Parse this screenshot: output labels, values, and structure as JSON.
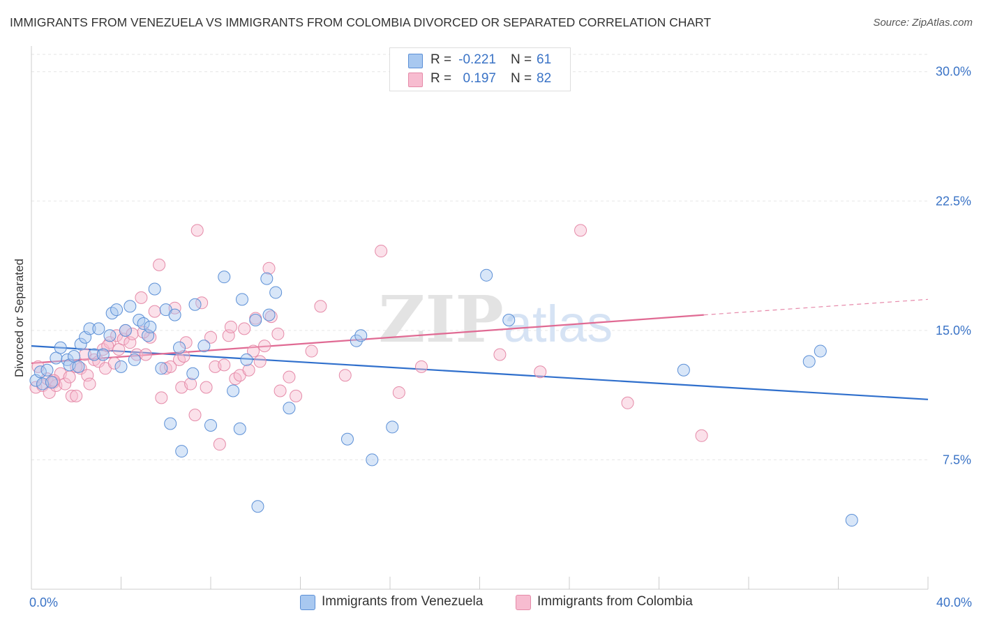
{
  "header": {
    "title": "IMMIGRANTS FROM VENEZUELA VS IMMIGRANTS FROM COLOMBIA DIVORCED OR SEPARATED CORRELATION CHART",
    "source": "Source: ZipAtlas.com"
  },
  "watermark": {
    "text_zip": "ZIP",
    "text_atlas": "atlas"
  },
  "colors": {
    "venezuela_fill": "#a8c8f0",
    "venezuela_stroke": "#5b8fd6",
    "venezuela_line": "#2f6fcc",
    "colombia_fill": "#f7bcd0",
    "colombia_stroke": "#e58aa8",
    "colombia_line": "#e06a93",
    "tick_label": "#3a73c6",
    "grid": "#e6e6e6"
  },
  "legend": {
    "venezuela": {
      "r_label": "R =",
      "r_value": "-0.221",
      "n_label": "N =",
      "n_value": "61"
    },
    "colombia": {
      "r_label": "R =",
      "r_value": "0.197",
      "n_label": "N =",
      "n_value": "82"
    }
  },
  "chart_data": {
    "type": "scatter",
    "xlabel": "",
    "ylabel": "Divorced or Separated",
    "xlim": [
      0,
      40
    ],
    "ylim": [
      0,
      31
    ],
    "x_tick_labels": [
      "0.0%",
      "40.0%"
    ],
    "y_ticks": [
      7.5,
      15.0,
      22.5,
      30.0
    ],
    "y_tick_labels": [
      "7.5%",
      "15.0%",
      "22.5%",
      "30.0%"
    ],
    "grid": "horizontal dashed",
    "legend_position": "top-center",
    "series": [
      {
        "name": "Immigrants from Venezuela",
        "points": [
          [
            0.2,
            12.1
          ],
          [
            0.4,
            12.6
          ],
          [
            0.5,
            11.9
          ],
          [
            0.7,
            12.7
          ],
          [
            0.9,
            12.0
          ],
          [
            1.1,
            13.4
          ],
          [
            1.3,
            14.0
          ],
          [
            1.6,
            13.3
          ],
          [
            1.7,
            13.0
          ],
          [
            1.9,
            13.5
          ],
          [
            2.1,
            12.9
          ],
          [
            2.2,
            14.2
          ],
          [
            2.4,
            14.6
          ],
          [
            2.6,
            15.1
          ],
          [
            2.8,
            13.6
          ],
          [
            3.0,
            15.1
          ],
          [
            3.2,
            13.6
          ],
          [
            3.5,
            14.7
          ],
          [
            3.6,
            16.0
          ],
          [
            3.8,
            16.2
          ],
          [
            4.0,
            12.9
          ],
          [
            4.2,
            15.0
          ],
          [
            4.4,
            16.4
          ],
          [
            4.6,
            13.3
          ],
          [
            4.8,
            15.6
          ],
          [
            5.0,
            15.4
          ],
          [
            5.2,
            14.7
          ],
          [
            5.3,
            15.2
          ],
          [
            5.5,
            17.4
          ],
          [
            5.8,
            12.8
          ],
          [
            6.0,
            16.2
          ],
          [
            6.2,
            9.6
          ],
          [
            6.4,
            15.9
          ],
          [
            6.6,
            14.0
          ],
          [
            6.7,
            8.0
          ],
          [
            7.2,
            12.5
          ],
          [
            7.3,
            16.5
          ],
          [
            7.7,
            14.1
          ],
          [
            8.0,
            9.5
          ],
          [
            8.6,
            18.1
          ],
          [
            9.0,
            11.5
          ],
          [
            9.3,
            9.3
          ],
          [
            9.4,
            16.8
          ],
          [
            9.6,
            13.3
          ],
          [
            10.0,
            15.6
          ],
          [
            10.1,
            4.8
          ],
          [
            10.5,
            18.0
          ],
          [
            10.6,
            15.9
          ],
          [
            10.9,
            17.2
          ],
          [
            11.5,
            10.5
          ],
          [
            14.1,
            8.7
          ],
          [
            14.5,
            14.4
          ],
          [
            14.7,
            14.7
          ],
          [
            15.2,
            7.5
          ],
          [
            16.1,
            9.4
          ],
          [
            20.3,
            18.2
          ],
          [
            21.3,
            15.6
          ],
          [
            29.1,
            12.7
          ],
          [
            34.7,
            13.2
          ],
          [
            35.2,
            13.8
          ],
          [
            36.6,
            4.0
          ]
        ],
        "trend": {
          "x": [
            0,
            40
          ],
          "y": [
            14.1,
            11.0
          ]
        }
      },
      {
        "name": "Immigrants from Colombia",
        "points": [
          [
            0.2,
            11.7
          ],
          [
            0.3,
            12.9
          ],
          [
            0.5,
            11.8
          ],
          [
            0.7,
            12.2
          ],
          [
            0.8,
            11.4
          ],
          [
            1.0,
            12.0
          ],
          [
            1.1,
            11.8
          ],
          [
            1.3,
            12.5
          ],
          [
            1.5,
            11.9
          ],
          [
            1.7,
            12.3
          ],
          [
            1.8,
            11.2
          ],
          [
            2.0,
            11.2
          ],
          [
            2.2,
            12.8
          ],
          [
            2.4,
            13.6
          ],
          [
            2.5,
            12.4
          ],
          [
            2.6,
            11.9
          ],
          [
            2.8,
            13.3
          ],
          [
            3.0,
            13.2
          ],
          [
            3.2,
            13.9
          ],
          [
            3.3,
            12.8
          ],
          [
            3.5,
            14.3
          ],
          [
            3.7,
            13.1
          ],
          [
            3.8,
            14.7
          ],
          [
            3.9,
            13.9
          ],
          [
            4.1,
            14.5
          ],
          [
            4.2,
            15.0
          ],
          [
            4.4,
            14.3
          ],
          [
            4.5,
            14.8
          ],
          [
            4.7,
            13.6
          ],
          [
            4.9,
            16.9
          ],
          [
            5.1,
            13.6
          ],
          [
            5.3,
            14.6
          ],
          [
            5.5,
            16.1
          ],
          [
            5.7,
            18.8
          ],
          [
            5.8,
            11.1
          ],
          [
            6.0,
            12.8
          ],
          [
            6.2,
            12.9
          ],
          [
            6.4,
            16.3
          ],
          [
            6.6,
            13.3
          ],
          [
            6.7,
            11.7
          ],
          [
            6.9,
            14.3
          ],
          [
            7.1,
            11.9
          ],
          [
            7.3,
            10.1
          ],
          [
            7.4,
            20.8
          ],
          [
            7.6,
            16.6
          ],
          [
            7.8,
            11.7
          ],
          [
            8.0,
            14.6
          ],
          [
            8.2,
            12.9
          ],
          [
            8.4,
            8.4
          ],
          [
            8.6,
            13.0
          ],
          [
            8.8,
            14.7
          ],
          [
            8.9,
            15.2
          ],
          [
            9.1,
            12.2
          ],
          [
            9.3,
            12.4
          ],
          [
            9.5,
            15.1
          ],
          [
            9.7,
            12.7
          ],
          [
            9.9,
            13.8
          ],
          [
            10.0,
            15.7
          ],
          [
            10.2,
            13.2
          ],
          [
            10.4,
            14.1
          ],
          [
            10.6,
            18.6
          ],
          [
            10.7,
            15.8
          ],
          [
            11.0,
            14.8
          ],
          [
            11.1,
            11.5
          ],
          [
            11.5,
            12.3
          ],
          [
            11.8,
            11.2
          ],
          [
            12.5,
            13.8
          ],
          [
            12.9,
            16.4
          ],
          [
            14.0,
            12.4
          ],
          [
            15.6,
            19.6
          ],
          [
            16.4,
            11.4
          ],
          [
            17.4,
            12.9
          ],
          [
            20.9,
            13.6
          ],
          [
            22.7,
            12.6
          ],
          [
            24.5,
            20.8
          ],
          [
            26.6,
            10.8
          ],
          [
            29.9,
            8.9
          ],
          [
            5.0,
            14.9
          ],
          [
            6.8,
            13.5
          ],
          [
            3.4,
            14.1
          ],
          [
            1.0,
            12.1
          ],
          [
            2.0,
            12.9
          ]
        ],
        "trend": {
          "x": [
            0,
            30
          ],
          "y": [
            13.1,
            15.9
          ]
        },
        "trend_dashed": {
          "x": [
            30,
            40
          ],
          "y": [
            15.9,
            16.8
          ]
        }
      }
    ]
  },
  "bottom_legend": {
    "venezuela_label": "Immigrants from Venezuela",
    "colombia_label": "Immigrants from Colombia"
  }
}
